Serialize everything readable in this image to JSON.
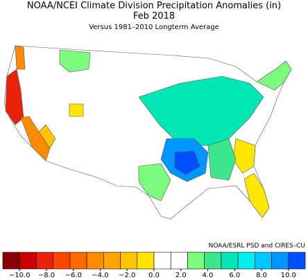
{
  "title": "NOAA/NCEI Climate Division Precipitation Anomalies (in)",
  "date": "Feb 2018",
  "subtitle": "Versus 1981–2010 Longterm Average",
  "credit": "NOAA/ESRL PSD and CIRES–CU",
  "colorbar": {
    "colors": [
      "#8b0000",
      "#cc0000",
      "#e8230a",
      "#ff4500",
      "#ff6a00",
      "#ff8c00",
      "#ffa500",
      "#ffc400",
      "#ffe600",
      "#ffffff",
      "#ffffff",
      "#7cfc7c",
      "#3ce68c",
      "#00e6b4",
      "#00f0f0",
      "#00c8ff",
      "#0096ff",
      "#0050ff"
    ],
    "ticks": [
      {
        "value": -10,
        "label": "−10.0"
      },
      {
        "value": -8,
        "label": "−8.0"
      },
      {
        "value": -6,
        "label": "−6.0"
      },
      {
        "value": -4,
        "label": "−4.0"
      },
      {
        "value": -2,
        "label": "−2.0"
      },
      {
        "value": 0,
        "label": "0.0"
      },
      {
        "value": 2,
        "label": "2.0"
      },
      {
        "value": 4,
        "label": "4.0"
      },
      {
        "value": 6,
        "label": "6.0"
      },
      {
        "value": 8,
        "label": "8.0"
      },
      {
        "value": 10,
        "label": "10.0"
      }
    ]
  }
}
